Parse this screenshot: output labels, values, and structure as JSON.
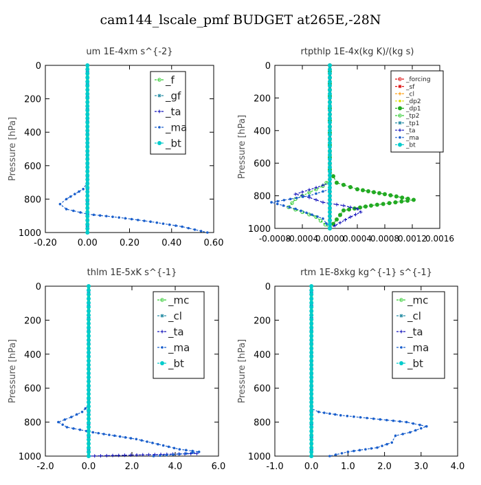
{
  "figure_title": "cam144_lscale_pmf  BUDGET at265E,-28N",
  "colors": {
    "green": "#33cc33",
    "darkgreen": "#22aa22",
    "blue": "#1a5fcc",
    "navy": "#1010bb",
    "cyan": "#00cccc",
    "teal": "#2a8fa6",
    "red": "#dd1111",
    "orange": "#ff9900",
    "yellow": "#dddd00"
  },
  "chart_data": [
    {
      "id": "um",
      "type": "line",
      "title": "um   1E-4xm s^{-2}",
      "xlabel": "",
      "ylabel": "Pressure [hPa]",
      "xlim": [
        -0.2,
        0.6
      ],
      "xticks": [
        -0.2,
        0.0,
        0.2,
        0.4,
        0.6
      ],
      "xtick_labels": [
        "-0.20",
        "0.00",
        "0.20",
        "0.40",
        "0.60"
      ],
      "ylim": [
        1000,
        0
      ],
      "yticks": [
        0,
        200,
        400,
        600,
        800,
        1000
      ],
      "ytick_labels": [
        "0",
        "200",
        "400",
        "600",
        "800",
        "1000"
      ],
      "legend": [
        "_f",
        "_gf",
        "_ta",
        "_ma",
        "_bt"
      ],
      "series": [
        {
          "name": "_f",
          "color": "green",
          "width": 2,
          "x": [
            0.0,
            0.0
          ],
          "y": [
            0,
            1000
          ]
        },
        {
          "name": "_gf",
          "color": "teal",
          "width": 1,
          "x": [
            0.0,
            0.0
          ],
          "y": [
            0,
            1000
          ]
        },
        {
          "name": "_ta",
          "color": "navy",
          "width": 1,
          "x": [
            0.0,
            0.0
          ],
          "y": [
            0,
            1000
          ]
        },
        {
          "name": "_ma",
          "color": "blue",
          "width": 1,
          "x": [
            0.0,
            0.0,
            -0.02,
            -0.06,
            -0.1,
            -0.13,
            -0.1,
            0.0,
            0.15,
            0.3,
            0.45,
            0.57
          ],
          "y": [
            0,
            700,
            740,
            770,
            800,
            830,
            860,
            890,
            910,
            935,
            965,
            1000
          ]
        },
        {
          "name": "_bt",
          "color": "cyan",
          "width": 3,
          "x": [
            0.0,
            0.0
          ],
          "y": [
            0,
            1000
          ]
        }
      ]
    },
    {
      "id": "rtpthlp",
      "type": "line",
      "title": "rtpthlp   1E-4x(kg K)/(kg s)",
      "xlabel": "",
      "ylabel": "Pressure [hPa]",
      "xlim": [
        -0.0008,
        0.0016
      ],
      "xticks": [
        -0.0008,
        -0.0004,
        0.0,
        0.0004,
        0.0008,
        0.0012,
        0.0016
      ],
      "xtick_labels": [
        "-0.0008",
        "-0.0004",
        "0.0000",
        "0.0004",
        "0.0008",
        "0.0012",
        "0.0016"
      ],
      "ylim": [
        1000,
        0
      ],
      "yticks": [
        0,
        200,
        400,
        600,
        800,
        1000
      ],
      "ytick_labels": [
        "0",
        "200",
        "400",
        "600",
        "800",
        "1000"
      ],
      "legend": [
        "_forcing",
        "_sf",
        "_cl",
        "_dp2",
        "_dp1",
        "_tp2",
        "_tp1",
        "_ta",
        "_ma",
        "_bt"
      ],
      "series": [
        {
          "name": "_forcing",
          "color": "red",
          "width": 2,
          "x": [
            0.0,
            0.0
          ],
          "y": [
            0,
            1000
          ]
        },
        {
          "name": "_sf",
          "color": "red",
          "width": 1,
          "x": [
            0.0,
            0.0
          ],
          "y": [
            0,
            1000
          ]
        },
        {
          "name": "_cl",
          "color": "orange",
          "width": 1,
          "x": [
            0.0,
            0.0
          ],
          "y": [
            0,
            1000
          ]
        },
        {
          "name": "_dp2",
          "color": "yellow",
          "width": 1,
          "x": [
            0.0,
            0.0
          ],
          "y": [
            0,
            1000
          ]
        },
        {
          "name": "_dp1",
          "color": "darkgreen",
          "width": 1,
          "x": [
            0.0,
            0.0,
            0.0001,
            0.0004,
            0.0008,
            0.00122,
            0.0006,
            0.0002,
            0.0
          ],
          "y": [
            0,
            640,
            720,
            760,
            790,
            825,
            860,
            890,
            1000
          ]
        },
        {
          "name": "_tp2",
          "color": "green",
          "width": 1,
          "x": [
            0.0,
            -0.0001,
            -0.0003,
            -0.0005,
            -0.0006,
            -0.0004,
            -0.0002,
            0.0
          ],
          "y": [
            700,
            740,
            780,
            820,
            870,
            900,
            930,
            1000
          ]
        },
        {
          "name": "_tp1",
          "color": "teal",
          "width": 1,
          "x": [
            0.0,
            0.0
          ],
          "y": [
            0,
            1000
          ]
        },
        {
          "name": "_ta",
          "color": "navy",
          "width": 1,
          "x": [
            0.0,
            -0.0002,
            -0.0005,
            -0.0003,
            -0.0001,
            0.0002,
            0.0004,
            0.00045,
            0.0003,
            0.0
          ],
          "y": [
            720,
            750,
            790,
            810,
            840,
            860,
            880,
            900,
            930,
            1000
          ]
        },
        {
          "name": "_ma",
          "color": "blue",
          "width": 1,
          "x": [
            0.0,
            -0.0003,
            -0.00085,
            -0.0005,
            -0.0001,
            0.0
          ],
          "y": [
            760,
            800,
            840,
            880,
            940,
            1000
          ]
        },
        {
          "name": "_bt",
          "color": "cyan",
          "width": 3,
          "x": [
            0.0,
            0.0
          ],
          "y": [
            0,
            1000
          ]
        }
      ]
    },
    {
      "id": "thlm",
      "type": "line",
      "title": "thlm   1E-5xK s^{-1}",
      "xlabel": "",
      "ylabel": "Pressure [hPa]",
      "xlim": [
        -2.0,
        6.0
      ],
      "xticks": [
        -2.0,
        0.0,
        2.0,
        4.0,
        6.0
      ],
      "xtick_labels": [
        "-2.0",
        "0.0",
        "2.0",
        "4.0",
        "6.0"
      ],
      "ylim": [
        1000,
        0
      ],
      "yticks": [
        0,
        200,
        400,
        600,
        800,
        1000
      ],
      "ytick_labels": [
        "0",
        "200",
        "400",
        "600",
        "800",
        "1000"
      ],
      "legend": [
        "_mc",
        "_cl",
        "_ta",
        "_ma",
        "_bt"
      ],
      "series": [
        {
          "name": "_mc",
          "color": "green",
          "width": 2,
          "x": [
            0.0,
            0.0
          ],
          "y": [
            0,
            1000
          ]
        },
        {
          "name": "_cl",
          "color": "teal",
          "width": 1,
          "x": [
            0.0,
            0.0
          ],
          "y": [
            0,
            1000
          ]
        },
        {
          "name": "_ta",
          "color": "navy",
          "width": 1,
          "x": [
            0.0,
            0.0,
            5.0
          ],
          "y": [
            0,
            1000,
            985
          ]
        },
        {
          "name": "_ma",
          "color": "blue",
          "width": 1,
          "x": [
            0.0,
            0.0,
            -0.3,
            -0.8,
            -1.4,
            -1.0,
            0.2,
            1.2,
            2.2,
            3.2,
            4.2,
            5.1,
            4.5,
            3.0
          ],
          "y": [
            0,
            700,
            740,
            770,
            800,
            830,
            860,
            880,
            900,
            930,
            960,
            975,
            985,
            1000
          ]
        },
        {
          "name": "_bt",
          "color": "cyan",
          "width": 3,
          "x": [
            0.0,
            0.0
          ],
          "y": [
            0,
            1000
          ]
        }
      ]
    },
    {
      "id": "rtm",
      "type": "line",
      "title": "rtm   1E-8xkg kg^{-1} s^{-1}",
      "xlabel": "",
      "ylabel": "Pressure [hPa]",
      "xlim": [
        -1.0,
        4.0
      ],
      "xticks": [
        -1.0,
        0.0,
        1.0,
        2.0,
        3.0,
        4.0
      ],
      "xtick_labels": [
        "-1.0",
        "0.0",
        "1.0",
        "2.0",
        "3.0",
        "4.0"
      ],
      "ylim": [
        1000,
        0
      ],
      "yticks": [
        0,
        200,
        400,
        600,
        800,
        1000
      ],
      "ytick_labels": [
        "0",
        "200",
        "400",
        "600",
        "800",
        "1000"
      ],
      "legend": [
        "_mc",
        "_cl",
        "_ta",
        "_ma",
        "_bt"
      ],
      "series": [
        {
          "name": "_mc",
          "color": "green",
          "width": 2,
          "x": [
            0.0,
            0.0
          ],
          "y": [
            0,
            1000
          ]
        },
        {
          "name": "_cl",
          "color": "teal",
          "width": 1,
          "x": [
            0.0,
            0.0
          ],
          "y": [
            0,
            1000
          ]
        },
        {
          "name": "_ta",
          "color": "navy",
          "width": 1,
          "x": [
            0.0,
            0.0
          ],
          "y": [
            0,
            1000
          ]
        },
        {
          "name": "_ma",
          "color": "blue",
          "width": 1,
          "x": [
            0.0,
            0.0,
            0.2,
            0.8,
            1.7,
            2.6,
            3.15,
            2.7,
            2.3,
            2.2,
            1.8,
            1.0,
            0.5
          ],
          "y": [
            0,
            720,
            740,
            760,
            780,
            800,
            825,
            860,
            880,
            920,
            950,
            975,
            1000
          ]
        },
        {
          "name": "_bt",
          "color": "cyan",
          "width": 3,
          "x": [
            0.0,
            0.0
          ],
          "y": [
            0,
            1000
          ]
        }
      ]
    }
  ]
}
